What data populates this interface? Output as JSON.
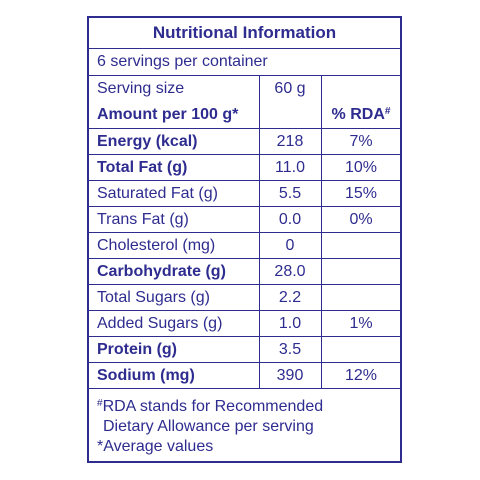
{
  "title": "Nutritional Information",
  "servings_per_container": "6 servings per container",
  "serving_size": {
    "label": "Serving size",
    "value": "60 g"
  },
  "header": {
    "amount_label": "Amount per 100 g*",
    "rda_label": "% RDA",
    "rda_mark": "#"
  },
  "rows": [
    {
      "label": "Energy (kcal)",
      "value": "218",
      "rda": "7%",
      "bold": true
    },
    {
      "label": "Total Fat (g)",
      "value": "11.0",
      "rda": "10%",
      "bold": true
    },
    {
      "label": "Saturated Fat (g)",
      "value": "5.5",
      "rda": "15%",
      "bold": false
    },
    {
      "label": "Trans Fat (g)",
      "value": "0.0",
      "rda": "0%",
      "bold": false
    },
    {
      "label": "Cholesterol (mg)",
      "value": "0",
      "rda": "",
      "bold": false
    },
    {
      "label": "Carbohydrate (g)",
      "value": "28.0",
      "rda": "",
      "bold": true
    },
    {
      "label": "Total Sugars (g)",
      "value": "2.2",
      "rda": "",
      "bold": false
    },
    {
      "label": "Added Sugars (g)",
      "value": "1.0",
      "rda": "1%",
      "bold": false
    },
    {
      "label": "Protein (g)",
      "value": "3.5",
      "rda": "",
      "bold": true
    },
    {
      "label": "Sodium (mg)",
      "value": "390",
      "rda": "12%",
      "bold": true
    }
  ],
  "footer": {
    "rda_mark": "#",
    "line1": "RDA stands for Recommended",
    "line2": "Dietary Allowance per serving",
    "line3": "*Average values"
  },
  "colors": {
    "ink": "#2e2c8f",
    "background": "#ffffff"
  }
}
